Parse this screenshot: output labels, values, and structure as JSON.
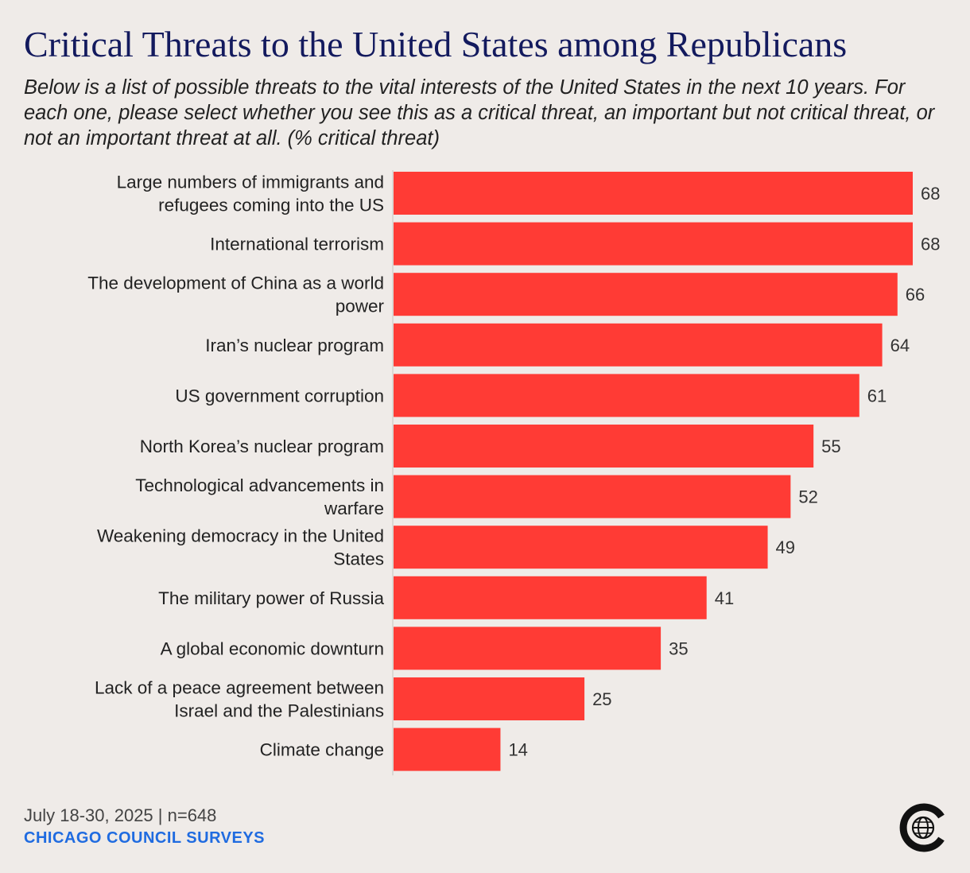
{
  "header": {
    "title": "Critical Threats to the United States among Republicans",
    "subtitle": "Below is a list of possible threats to the vital interests of the United States in the next 10 years. For each one, please select whether you see this as a critical threat, an important but not critical threat, or not an important threat at all. (% critical threat)"
  },
  "footer": {
    "date_n": "July 18-30, 2025 | n=648",
    "source": "CHICAGO COUNCIL SURVEYS",
    "logo_icon": "chicago-council-globe-logo-icon"
  },
  "colors": {
    "bar": "#ff3b35",
    "title": "#131a5e",
    "source": "#1f6be0",
    "background": "#efebe8"
  },
  "chart_data": {
    "type": "bar",
    "orientation": "horizontal",
    "categories": [
      [
        "Large numbers of immigrants and",
        "refugees coming into the US"
      ],
      [
        "International terrorism"
      ],
      [
        "The development of China as a world",
        "power"
      ],
      [
        "Iran’s nuclear program"
      ],
      [
        "US government corruption"
      ],
      [
        "North Korea’s nuclear program"
      ],
      [
        "Technological advancements in",
        "warfare"
      ],
      [
        "Weakening democracy in the United",
        "States"
      ],
      [
        "The military power of Russia"
      ],
      [
        "A global economic downturn"
      ],
      [
        "Lack of a peace agreement between",
        "Israel and the Palestinians"
      ],
      [
        "Climate change"
      ]
    ],
    "values": [
      68,
      68,
      66,
      64,
      61,
      55,
      52,
      49,
      41,
      35,
      25,
      14
    ],
    "xlim": [
      0,
      68
    ],
    "grid": false,
    "legend": false
  }
}
